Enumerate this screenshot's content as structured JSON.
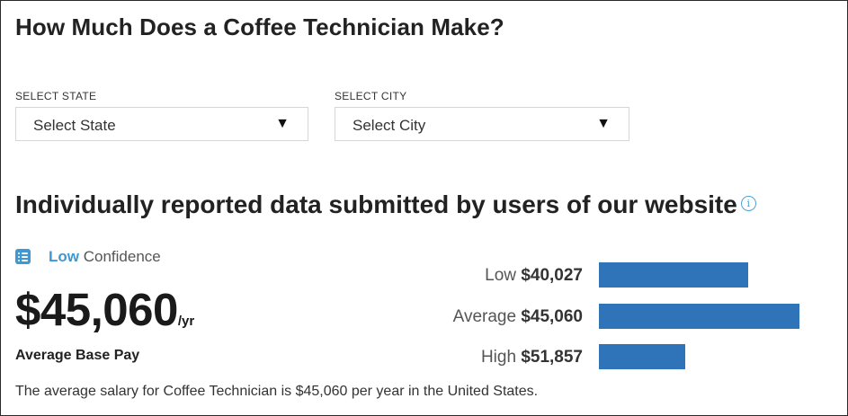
{
  "page_title": "How Much Does a Coffee Technician Make?",
  "state_select": {
    "label": "SELECT STATE",
    "value": "Select State",
    "caret": "▼"
  },
  "city_select": {
    "label": "SELECT CITY",
    "value": "Select City",
    "caret": "▼"
  },
  "section_title": "Individually reported data submitted by users of our website",
  "info_icon": "i",
  "confidence": {
    "level": "Low",
    "word": "Confidence",
    "icon": "list-icon"
  },
  "average_pay": {
    "amount": "$45,060",
    "unit": "/yr",
    "label": "Average Base Pay"
  },
  "summary": "The average salary for Coffee Technician is $45,060 per year in the United States.",
  "colors": {
    "bar": "#2f73b8",
    "accent": "#3d98d3"
  },
  "chart_data": {
    "type": "bar",
    "orientation": "horizontal",
    "categories": [
      "Low",
      "Average",
      "High"
    ],
    "labels": [
      "$40,027",
      "$45,060",
      "$51,857"
    ],
    "fill_fraction": [
      0.745,
      1.0,
      0.43
    ]
  }
}
